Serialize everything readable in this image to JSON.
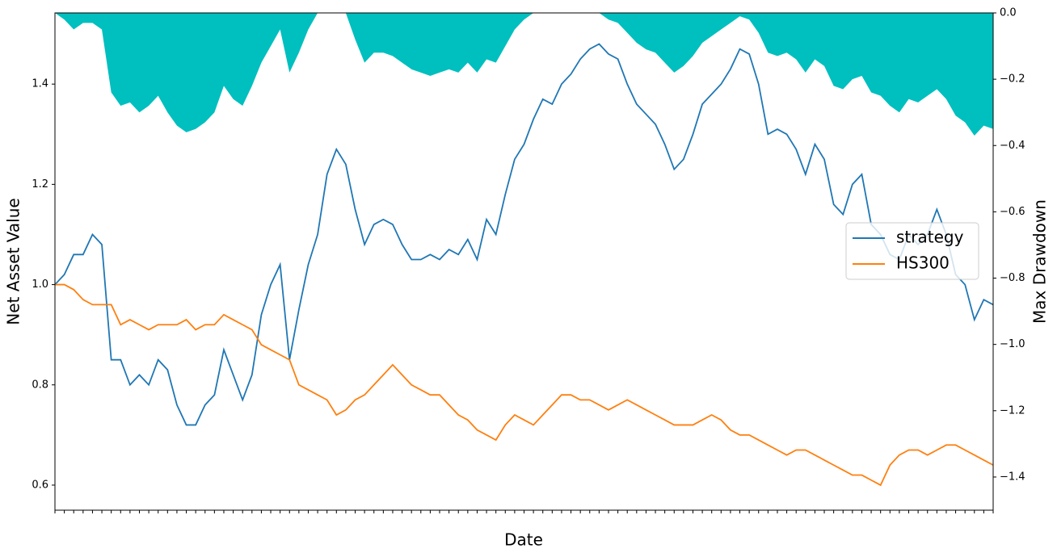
{
  "chart_data": {
    "type": "line",
    "xlabel": "Date",
    "ylabel": "Net Asset Value",
    "y2label": "Max Drawdown",
    "legend": "right",
    "categories": [
      null,
      null,
      null,
      null,
      null,
      null,
      null,
      null,
      null,
      null,
      null,
      null,
      null,
      null,
      null,
      null,
      null,
      null,
      null,
      null,
      null,
      null,
      null,
      null,
      null,
      null,
      null,
      null,
      null,
      null,
      null,
      null,
      null,
      null,
      null,
      null,
      null,
      null,
      null,
      null,
      null,
      null,
      null,
      null,
      null,
      null,
      null,
      null,
      null,
      null,
      null,
      null,
      null,
      null,
      null,
      null,
      null,
      null,
      null,
      null,
      null,
      null,
      null,
      null,
      null,
      null,
      null,
      null,
      null,
      null,
      null,
      null,
      null,
      null,
      null,
      null,
      null,
      null,
      null,
      null,
      null,
      null,
      null,
      null,
      null,
      null,
      null,
      null,
      null,
      null,
      null,
      null,
      null,
      null,
      null,
      null,
      null,
      null,
      null,
      null,
      null
    ],
    "ylim": [
      0.55,
      1.542
    ],
    "yticks": [
      0.6,
      0.8,
      {
        "value": 1,
        "label": "1.0"
      },
      1.2,
      1.4
    ],
    "y2lim": [
      -1.5,
      0
    ],
    "y2ticks": [
      {
        "value": 0,
        "label": "0.0"
      },
      {
        "value": -0.2,
        "label": "−0.2"
      },
      {
        "value": -0.4,
        "label": "−0.4"
      },
      {
        "value": -0.6,
        "label": "−0.6"
      },
      {
        "value": -0.8,
        "label": "−0.8"
      },
      {
        "value": -1,
        "label": "−1.0"
      },
      {
        "value": -1.2,
        "label": "−1.2"
      },
      {
        "value": -1.4,
        "label": "−1.4"
      }
    ],
    "drawdown": {
      "color": "#00bfbf",
      "axis": "y2",
      "values": [
        0,
        -0.02,
        -0.05,
        -0.03,
        -0.03,
        -0.05,
        -0.24,
        -0.28,
        -0.27,
        -0.3,
        -0.28,
        -0.25,
        -0.3,
        -0.34,
        -0.36,
        -0.35,
        -0.33,
        -0.3,
        -0.22,
        -0.26,
        -0.28,
        -0.22,
        -0.15,
        -0.1,
        -0.05,
        -0.18,
        -0.12,
        -0.05,
        0,
        0,
        0,
        0,
        -0.08,
        -0.15,
        -0.12,
        -0.12,
        -0.13,
        -0.15,
        -0.17,
        -0.18,
        -0.19,
        -0.18,
        -0.17,
        -0.18,
        -0.15,
        -0.18,
        -0.14,
        -0.15,
        -0.1,
        -0.05,
        -0.02,
        0,
        0,
        0,
        0,
        0,
        0,
        0,
        0,
        -0.02,
        -0.03,
        -0.06,
        -0.09,
        -0.11,
        -0.12,
        -0.15,
        -0.18,
        -0.16,
        -0.13,
        -0.09,
        -0.07,
        -0.05,
        -0.03,
        -0.01,
        -0.02,
        -0.06,
        -0.12,
        -0.13,
        -0.12,
        -0.14,
        -0.18,
        -0.14,
        -0.16,
        -0.22,
        -0.23,
        -0.2,
        -0.19,
        -0.24,
        -0.25,
        -0.28,
        -0.3,
        -0.26,
        -0.27,
        -0.25,
        -0.23,
        -0.26,
        -0.31,
        -0.33,
        -0.37,
        -0.34,
        -0.35
      ]
    },
    "series": [
      {
        "name": "strategy",
        "color": "#1f77b4",
        "values": [
          1.0,
          1.02,
          1.06,
          1.06,
          1.1,
          1.08,
          0.85,
          0.85,
          0.8,
          0.82,
          0.8,
          0.85,
          0.83,
          0.76,
          0.72,
          0.72,
          0.76,
          0.78,
          0.87,
          0.82,
          0.77,
          0.82,
          0.94,
          1.0,
          1.04,
          0.85,
          0.95,
          1.04,
          1.1,
          1.22,
          1.27,
          1.24,
          1.15,
          1.08,
          1.12,
          1.13,
          1.12,
          1.08,
          1.05,
          1.05,
          1.06,
          1.05,
          1.07,
          1.06,
          1.09,
          1.05,
          1.13,
          1.1,
          1.18,
          1.25,
          1.28,
          1.33,
          1.37,
          1.36,
          1.4,
          1.42,
          1.45,
          1.47,
          1.48,
          1.46,
          1.45,
          1.4,
          1.36,
          1.34,
          1.32,
          1.28,
          1.23,
          1.25,
          1.3,
          1.36,
          1.38,
          1.4,
          1.43,
          1.47,
          1.46,
          1.4,
          1.3,
          1.31,
          1.3,
          1.27,
          1.22,
          1.28,
          1.25,
          1.16,
          1.14,
          1.2,
          1.22,
          1.12,
          1.1,
          1.06,
          1.05,
          1.1,
          1.08,
          1.1,
          1.15,
          1.1,
          1.02,
          1.0,
          0.93,
          0.97,
          0.96
        ]
      },
      {
        "name": "HS300",
        "color": "#ff7f0e",
        "values": [
          1.0,
          1.0,
          0.99,
          0.97,
          0.96,
          0.96,
          0.96,
          0.92,
          0.93,
          0.92,
          0.91,
          0.92,
          0.92,
          0.92,
          0.93,
          0.91,
          0.92,
          0.92,
          0.94,
          0.93,
          0.92,
          0.91,
          0.88,
          0.87,
          0.86,
          0.85,
          0.8,
          0.79,
          0.78,
          0.77,
          0.74,
          0.75,
          0.77,
          0.78,
          0.8,
          0.82,
          0.84,
          0.82,
          0.8,
          0.79,
          0.78,
          0.78,
          0.76,
          0.74,
          0.73,
          0.71,
          0.7,
          0.69,
          0.72,
          0.74,
          0.73,
          0.72,
          0.74,
          0.76,
          0.78,
          0.78,
          0.77,
          0.77,
          0.76,
          0.75,
          0.76,
          0.77,
          0.76,
          0.75,
          0.74,
          0.73,
          0.72,
          0.72,
          0.72,
          0.73,
          0.74,
          0.73,
          0.71,
          0.7,
          0.7,
          0.69,
          0.68,
          0.67,
          0.66,
          0.67,
          0.67,
          0.66,
          0.65,
          0.64,
          0.63,
          0.62,
          0.62,
          0.61,
          0.6,
          0.64,
          0.66,
          0.67,
          0.67,
          0.66,
          0.67,
          0.68,
          0.68,
          0.67,
          0.66,
          0.65,
          0.64
        ]
      }
    ]
  }
}
